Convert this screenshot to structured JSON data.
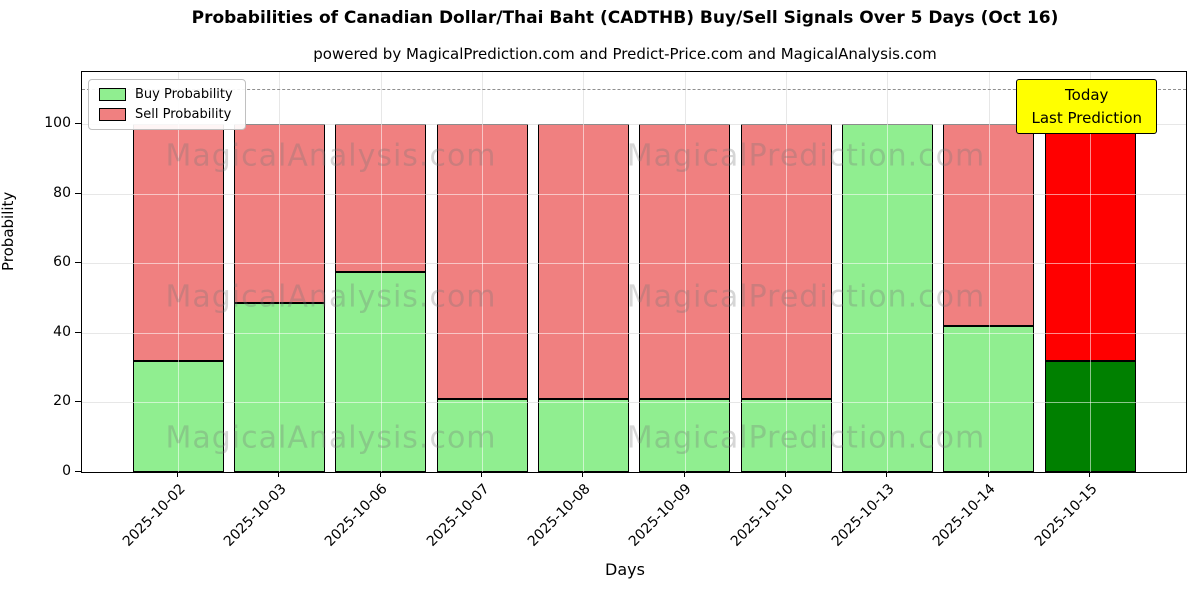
{
  "chart_data": {
    "type": "bar",
    "stacked": true,
    "title": "Probabilities of Canadian Dollar/Thai Baht (CADTHB) Buy/Sell Signals Over 5 Days (Oct 16)",
    "subtitle": "powered by MagicalPrediction.com and Predict-Price.com and MagicalAnalysis.com",
    "xlabel": "Days",
    "ylabel": "Probability",
    "categories": [
      "2025-10-02",
      "2025-10-03",
      "2025-10-06",
      "2025-10-07",
      "2025-10-08",
      "2025-10-09",
      "2025-10-10",
      "2025-10-13",
      "2025-10-14",
      "2025-10-15"
    ],
    "series": [
      {
        "name": "Buy Probability",
        "color": "#90ee90",
        "today_color": "#008000",
        "values": [
          32,
          48.5,
          57.5,
          21,
          21,
          21,
          21,
          100,
          42,
          32
        ]
      },
      {
        "name": "Sell Probability",
        "color": "#f08080",
        "today_color": "#ff0000",
        "values": [
          68,
          51.5,
          42.5,
          79,
          79,
          79,
          79,
          0,
          58,
          68
        ]
      }
    ],
    "yticks": [
      0,
      20,
      40,
      60,
      80,
      100
    ],
    "ylim": [
      0,
      115
    ],
    "dashed_line_y": 110,
    "grid": true,
    "legend_position": "top-left",
    "bar_edge_color": "#000000",
    "annotation": {
      "lines": [
        "Today",
        "Last Prediction"
      ],
      "bg_color": "#ffff00",
      "border_color": "#000000"
    },
    "watermarks": {
      "left_text": "MagicalAnalysis.com",
      "right_text": "MagicalPrediction.com"
    }
  }
}
